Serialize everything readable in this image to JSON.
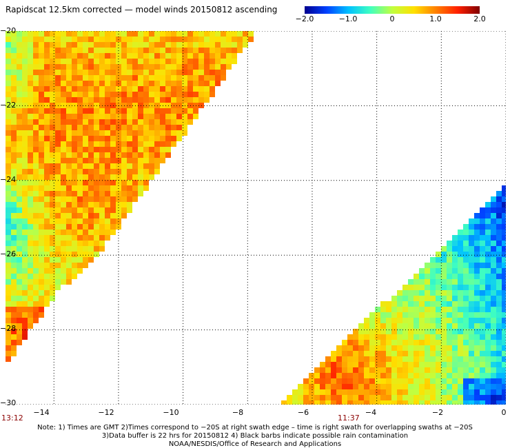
{
  "title": "Rapidscat 12.5km corrected — model winds 20150812 ascending",
  "colorbar": {
    "ticks": [
      {
        "value": -2.0,
        "label": "−2.0"
      },
      {
        "value": -1.0,
        "label": "−1.0"
      },
      {
        "value": 0,
        "label": "0"
      },
      {
        "value": 1.0,
        "label": "1.0"
      },
      {
        "value": 2.0,
        "label": "2.0"
      }
    ],
    "colors": [
      "#00008f",
      "#0040ff",
      "#00c0ff",
      "#40ffc0",
      "#c0ff40",
      "#ffe000",
      "#ff8000",
      "#ff2000",
      "#800000"
    ]
  },
  "map": {
    "lon_range": [
      -15.5,
      0
    ],
    "lat_range": [
      -30,
      -20
    ],
    "lat_ticks": [
      {
        "value": -20,
        "label": "−20"
      },
      {
        "value": -22,
        "label": "−22"
      },
      {
        "value": -24,
        "label": "−24"
      },
      {
        "value": -26,
        "label": "−26"
      },
      {
        "value": -28,
        "label": "−28"
      },
      {
        "value": -30,
        "label": "−30"
      }
    ],
    "lon_ticks": [
      {
        "value": -14,
        "label": "−14"
      },
      {
        "value": -12,
        "label": "−12"
      },
      {
        "value": -10,
        "label": "−10"
      },
      {
        "value": -8,
        "label": "−8"
      },
      {
        "value": -6,
        "label": "−6"
      },
      {
        "value": -4,
        "label": "−4"
      },
      {
        "value": -2,
        "label": "−2"
      },
      {
        "value": 0,
        "label": "0"
      }
    ],
    "grid": "dotted",
    "swaths": [
      {
        "time": "13:12",
        "edge_lon": -15.5,
        "corners": [
          [
            -15.5,
            -20
          ],
          [
            -7.7,
            -20
          ],
          [
            -12.6,
            -26
          ],
          [
            -13.9,
            -27
          ],
          [
            -15.5,
            -29
          ]
        ]
      },
      {
        "time": "11:37",
        "edge_lon": -4.6,
        "corners": [
          [
            -7.0,
            -30
          ],
          [
            0,
            -30
          ],
          [
            0,
            -24.1
          ]
        ]
      }
    ]
  },
  "notes": [
    "Note: 1) Times are GMT 2)Times correspond to −20S at right swath edge – time is right swath for overlapping swaths at −20S",
    "3)Data buffer is 22 hrs for 20150812 4) Black barbs indicate possible rain contamination",
    "NOAA/NESDIS/Office of Research and Applications"
  ]
}
